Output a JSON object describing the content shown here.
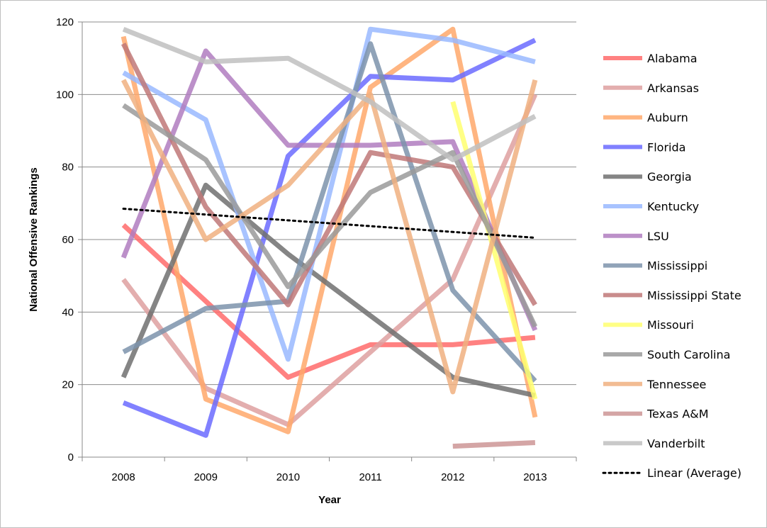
{
  "chart_data": {
    "type": "line",
    "title": "",
    "xlabel": "Year",
    "ylabel": "National Offensive Rankings",
    "x": [
      "2008",
      "2009",
      "2010",
      "2011",
      "2012",
      "2013"
    ],
    "ylim": [
      0,
      120
    ],
    "yticks": [
      "0",
      "20",
      "40",
      "60",
      "80",
      "100",
      "120"
    ],
    "grid": true,
    "legend_position": "right",
    "series": [
      {
        "name": "Alabama",
        "color": "#ff6b6b",
        "values": [
          64,
          43,
          22,
          31,
          31,
          33
        ]
      },
      {
        "name": "Arkansas",
        "color": "#dea0a0",
        "values": [
          49,
          19,
          9,
          29,
          49,
          100
        ]
      },
      {
        "name": "Auburn",
        "color": "#ffa86b",
        "values": [
          116,
          16,
          7,
          102,
          118,
          11
        ]
      },
      {
        "name": "Florida",
        "color": "#6b6bff",
        "values": [
          15,
          6,
          83,
          105,
          104,
          115
        ]
      },
      {
        "name": "Georgia",
        "color": "#707070",
        "values": [
          22,
          75,
          56,
          39,
          22,
          17
        ]
      },
      {
        "name": "Kentucky",
        "color": "#99b8ff",
        "values": [
          106,
          93,
          27,
          118,
          115,
          109
        ]
      },
      {
        "name": "LSU",
        "color": "#b07cc0",
        "values": [
          55,
          112,
          86,
          86,
          87,
          35
        ]
      },
      {
        "name": "Mississippi",
        "color": "#7d93ab",
        "values": [
          29,
          41,
          43,
          114,
          46,
          21
        ]
      },
      {
        "name": "Mississippi State",
        "color": "#c07878",
        "values": [
          114,
          69,
          42,
          84,
          80,
          42
        ]
      },
      {
        "name": "Missouri",
        "color": "#ffff70",
        "values": [
          null,
          null,
          null,
          null,
          98,
          16
        ]
      },
      {
        "name": "South Carolina",
        "color": "#9a9a9a",
        "values": [
          97,
          82,
          47,
          73,
          84,
          36
        ]
      },
      {
        "name": "Tennessee",
        "color": "#f0b080",
        "values": [
          104,
          60,
          75,
          100,
          18,
          104
        ]
      },
      {
        "name": "Texas A&M",
        "color": "#cc9595",
        "values": [
          null,
          null,
          null,
          null,
          3,
          4
        ]
      },
      {
        "name": "Vanderbilt",
        "color": "#c0c0c0",
        "values": [
          118,
          109,
          110,
          98,
          82,
          94
        ]
      }
    ],
    "trendline": {
      "name": "Linear (Average)",
      "color": "#000000",
      "values": [
        68.5,
        66.9,
        65.3,
        63.7,
        62.1,
        60.5
      ]
    }
  }
}
